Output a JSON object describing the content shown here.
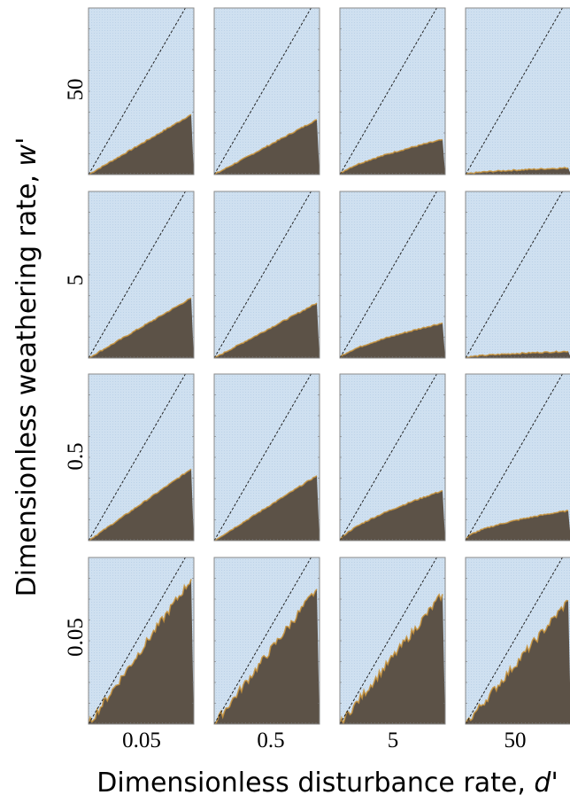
{
  "chart_data": {
    "type": "heatmap",
    "layout": "4x4 grid of small panels (partially cropped at right)",
    "xlabel": "Dimensionless disturbance rate, d'",
    "ylabel": "Dimensionless weathering rate, w'",
    "xlabel_prefix": "Dimensionless disturbance rate, ",
    "xlabel_symbol": "d'",
    "ylabel_prefix": "Dimensionless weathering rate, ",
    "ylabel_symbol": "w'",
    "column_labels": [
      "0.05",
      "0.5",
      "5",
      "50"
    ],
    "row_labels": [
      "50",
      "5",
      "0.5",
      "0.05"
    ],
    "regions": [
      {
        "name": "",
        "color": "#cfe0f0"
      },
      {
        "name": "",
        "color": "#5c5247"
      }
    ],
    "boundary_color": "#c9933a",
    "reference_line": {
      "style": "dashed",
      "color": "#111111"
    },
    "boundary_height_fraction": [
      [
        0.36,
        0.33,
        0.21,
        0.04
      ],
      [
        0.36,
        0.33,
        0.21,
        0.04
      ],
      [
        0.43,
        0.39,
        0.3,
        0.18
      ],
      [
        0.87,
        0.81,
        0.78,
        0.74
      ]
    ]
  }
}
